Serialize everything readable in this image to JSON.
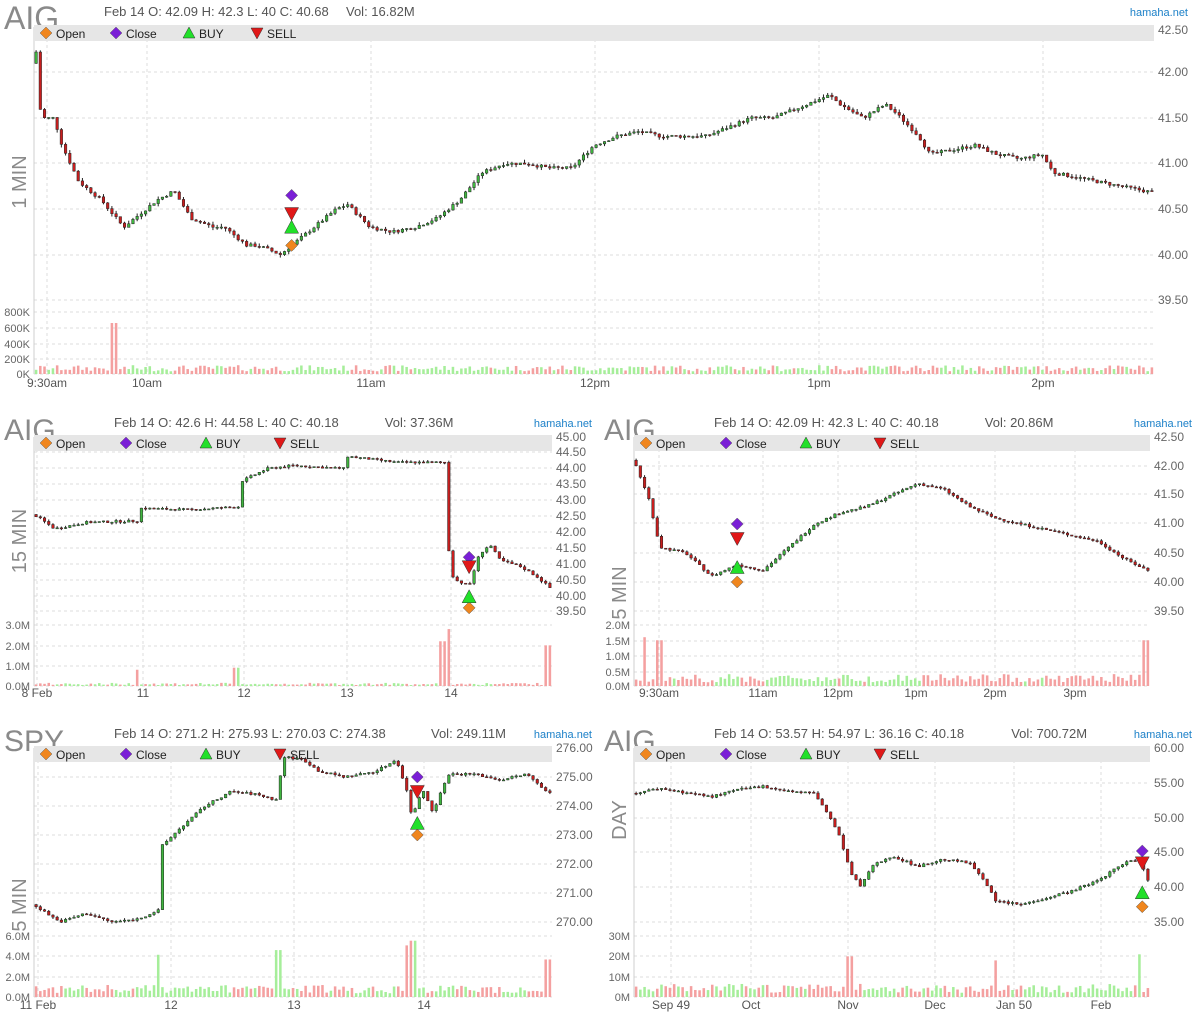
{
  "brand": "hamaha.net",
  "legend": [
    {
      "label": "Open",
      "marker": "diamond",
      "color": "#f0861e"
    },
    {
      "label": "Close",
      "marker": "diamond",
      "color": "#7a1fd6"
    },
    {
      "label": "BUY",
      "marker": "triangle-up",
      "color": "#22e02a"
    },
    {
      "label": "SELL",
      "marker": "triangle-down",
      "color": "#e01818"
    }
  ],
  "colors": {
    "up": "#3fb63f",
    "down": "#c81e1e",
    "vol_up": "#a6ee9a",
    "vol_down": "#f4a0a0",
    "grid": "#dddddd",
    "legend_bar": "#e6e6e6",
    "brand": "#1c80c8"
  },
  "charts": [
    {
      "id": "aig-1min",
      "symbol": "AIG",
      "timeframe": "1 MIN",
      "info": "Feb 14 O: 42.09 H: 42.3 L: 40 C: 40.68",
      "volume_text": "Vol: 16.82M",
      "price_ticks": [
        "42.50",
        "42.00",
        "41.50",
        "41.00",
        "40.50",
        "40.00",
        "39.50"
      ],
      "volume_ticks": [
        "800K",
        "600K",
        "400K",
        "200K",
        "0K"
      ],
      "x_ticks": [
        "9:30am",
        "10am",
        "11am",
        "12pm",
        "1pm",
        "2pm"
      ]
    },
    {
      "id": "aig-15min",
      "symbol": "AIG",
      "timeframe": "15 MIN",
      "info": "Feb 14 O: 42.6 H: 44.58 L: 40 C: 40.18",
      "volume_text": "Vol: 37.36M",
      "price_ticks": [
        "45.00",
        "44.50",
        "44.00",
        "43.50",
        "43.00",
        "42.50",
        "42.00",
        "41.50",
        "41.00",
        "40.50",
        "40.00",
        "39.50"
      ],
      "volume_ticks": [
        "3.0M",
        "2.0M",
        "1.0M",
        "0.0M"
      ],
      "x_ticks": [
        "8 Feb",
        "11",
        "12",
        "13",
        "14"
      ]
    },
    {
      "id": "aig-5min",
      "symbol": "AIG",
      "timeframe": "5 MIN",
      "info": "Feb 14 O: 42.09 H: 42.3 L: 40 C: 40.18",
      "volume_text": "Vol: 20.86M",
      "price_ticks": [
        "42.50",
        "42.00",
        "41.50",
        "41.00",
        "40.50",
        "40.00",
        "39.50"
      ],
      "volume_ticks": [
        "2.0M",
        "1.5M",
        "1.0M",
        "0.5M",
        "0.0M"
      ],
      "x_ticks": [
        "9:30am",
        "11am",
        "12pm",
        "1pm",
        "2pm",
        "3pm"
      ]
    },
    {
      "id": "spy-5min",
      "symbol": "SPY",
      "timeframe": "5 MIN",
      "info": "Feb 14 O: 271.2 H: 275.93 L: 270.03 C: 274.38",
      "volume_text": "Vol: 249.11M",
      "price_ticks": [
        "276.00",
        "275.00",
        "274.00",
        "273.00",
        "272.00",
        "271.00",
        "270.00"
      ],
      "volume_ticks": [
        "6.0M",
        "4.0M",
        "2.0M",
        "0.0M"
      ],
      "x_ticks": [
        "11 Feb",
        "12",
        "13",
        "14"
      ]
    },
    {
      "id": "aig-day",
      "symbol": "AIG",
      "timeframe": "DAY",
      "info": "Feb 14 O: 53.57 H: 54.97 L: 36.16 C: 40.18",
      "volume_text": "Vol: 700.72M",
      "price_ticks": [
        "60.00",
        "55.00",
        "50.00",
        "45.00",
        "40.00",
        "35.00"
      ],
      "volume_ticks": [
        "30M",
        "20M",
        "10M",
        "0M"
      ],
      "x_ticks": [
        "Sep 49",
        "Oct",
        "Nov",
        "Dec",
        "Jan 50",
        "Feb"
      ]
    }
  ],
  "chart_data": [
    {
      "type": "candlestick",
      "symbol": "AIG",
      "timeframe": "1 MIN",
      "ylim": [
        39.5,
        42.5
      ],
      "grid": true,
      "legend_position": "top",
      "price_path": [
        [
          0,
          42.1
        ],
        [
          0.003,
          42.3
        ],
        [
          0.006,
          41.5
        ],
        [
          0.018,
          41.5
        ],
        [
          0.025,
          41.2
        ],
        [
          0.04,
          40.8
        ],
        [
          0.06,
          40.6
        ],
        [
          0.08,
          40.3
        ],
        [
          0.1,
          40.5
        ],
        [
          0.11,
          40.6
        ],
        [
          0.125,
          40.7
        ],
        [
          0.14,
          40.4
        ],
        [
          0.16,
          40.3
        ],
        [
          0.17,
          40.3
        ],
        [
          0.19,
          40.1
        ],
        [
          0.2,
          40.1
        ],
        [
          0.22,
          40.0
        ],
        [
          0.24,
          40.2
        ],
        [
          0.25,
          40.3
        ],
        [
          0.26,
          40.4
        ],
        [
          0.27,
          40.5
        ],
        [
          0.28,
          40.55
        ],
        [
          0.3,
          40.3
        ],
        [
          0.32,
          40.25
        ],
        [
          0.34,
          40.3
        ],
        [
          0.36,
          40.4
        ],
        [
          0.38,
          40.6
        ],
        [
          0.4,
          40.9
        ],
        [
          0.42,
          41.0
        ],
        [
          0.44,
          41.0
        ],
        [
          0.46,
          40.95
        ],
        [
          0.48,
          40.95
        ],
        [
          0.5,
          41.2
        ],
        [
          0.52,
          41.3
        ],
        [
          0.54,
          41.35
        ],
        [
          0.56,
          41.3
        ],
        [
          0.58,
          41.3
        ],
        [
          0.6,
          41.3
        ],
        [
          0.62,
          41.4
        ],
        [
          0.64,
          41.5
        ],
        [
          0.66,
          41.5
        ],
        [
          0.68,
          41.6
        ],
        [
          0.7,
          41.7
        ],
        [
          0.71,
          41.75
        ],
        [
          0.72,
          41.65
        ],
        [
          0.74,
          41.5
        ],
        [
          0.76,
          41.65
        ],
        [
          0.77,
          41.55
        ],
        [
          0.79,
          41.3
        ],
        [
          0.8,
          41.1
        ],
        [
          0.82,
          41.15
        ],
        [
          0.84,
          41.2
        ],
        [
          0.86,
          41.1
        ],
        [
          0.88,
          41.05
        ],
        [
          0.9,
          41.1
        ],
        [
          0.91,
          40.9
        ],
        [
          0.93,
          40.85
        ],
        [
          0.95,
          40.8
        ],
        [
          0.97,
          40.75
        ],
        [
          1.0,
          40.68
        ]
      ],
      "trades": {
        "open": 40.1,
        "close": 40.65,
        "buy": 40.3,
        "sell": 40.45,
        "at": 0.23
      },
      "volume_spikes": [
        [
          0.07,
          600000
        ]
      ],
      "volume_base": 80000,
      "volume_max": 800000
    },
    {
      "type": "candlestick",
      "symbol": "AIG",
      "timeframe": "15 MIN",
      "ylim": [
        39.5,
        45.0
      ],
      "grid": true,
      "legend_position": "top",
      "price_path": [
        [
          0,
          42.55
        ],
        [
          0.04,
          42.1
        ],
        [
          0.1,
          42.3
        ],
        [
          0.2,
          42.35
        ],
        [
          0.2,
          42.75
        ],
        [
          0.3,
          42.7
        ],
        [
          0.4,
          42.8
        ],
        [
          0.4,
          43.6
        ],
        [
          0.45,
          44.0
        ],
        [
          0.5,
          44.1
        ],
        [
          0.6,
          44.0
        ],
        [
          0.6,
          44.4
        ],
        [
          0.7,
          44.2
        ],
        [
          0.8,
          44.2
        ],
        [
          0.8,
          41.5
        ],
        [
          0.81,
          40.5
        ],
        [
          0.84,
          40.3
        ],
        [
          0.86,
          41.3
        ],
        [
          0.88,
          41.6
        ],
        [
          0.9,
          41.1
        ],
        [
          0.94,
          40.9
        ],
        [
          0.97,
          40.6
        ],
        [
          1.0,
          40.18
        ]
      ],
      "trades": {
        "open": 39.6,
        "close": 41.2,
        "buy": 39.95,
        "sell": 40.9,
        "at": 0.84
      },
      "volume_spikes": [
        [
          0.2,
          800000
        ],
        [
          0.39,
          900000
        ],
        [
          0.79,
          2200000
        ],
        [
          0.8,
          2800000
        ],
        [
          0.99,
          2000000
        ]
      ],
      "volume_base": 120000,
      "volume_max": 3000000
    },
    {
      "type": "candlestick",
      "symbol": "AIG",
      "timeframe": "5 MIN",
      "ylim": [
        39.5,
        42.5
      ],
      "grid": true,
      "legend_position": "top",
      "price_path": [
        [
          0,
          42.1
        ],
        [
          0.03,
          41.4
        ],
        [
          0.05,
          40.6
        ],
        [
          0.1,
          40.5
        ],
        [
          0.15,
          40.1
        ],
        [
          0.2,
          40.3
        ],
        [
          0.25,
          40.2
        ],
        [
          0.3,
          40.6
        ],
        [
          0.35,
          41.0
        ],
        [
          0.4,
          41.2
        ],
        [
          0.45,
          41.3
        ],
        [
          0.5,
          41.5
        ],
        [
          0.55,
          41.7
        ],
        [
          0.6,
          41.6
        ],
        [
          0.65,
          41.3
        ],
        [
          0.7,
          41.1
        ],
        [
          0.75,
          41.0
        ],
        [
          0.8,
          40.9
        ],
        [
          0.85,
          40.8
        ],
        [
          0.9,
          40.7
        ],
        [
          0.95,
          40.4
        ],
        [
          1.0,
          40.18
        ]
      ],
      "trades": {
        "open": 40.0,
        "close": 41.0,
        "buy": 40.25,
        "sell": 40.75,
        "at": 0.2
      },
      "volume_spikes": [
        [
          0.02,
          1600000
        ],
        [
          0.05,
          1500000
        ],
        [
          0.99,
          1500000
        ]
      ],
      "volume_base": 300000,
      "volume_max": 2000000
    },
    {
      "type": "candlestick",
      "symbol": "SPY",
      "timeframe": "5 MIN",
      "ylim": [
        270.0,
        276.0
      ],
      "grid": true,
      "legend_position": "top",
      "price_path": [
        [
          0,
          270.6
        ],
        [
          0.05,
          270.0
        ],
        [
          0.1,
          270.3
        ],
        [
          0.15,
          270.0
        ],
        [
          0.2,
          270.1
        ],
        [
          0.24,
          270.4
        ],
        [
          0.24,
          272.5
        ],
        [
          0.28,
          273.2
        ],
        [
          0.33,
          274.0
        ],
        [
          0.38,
          274.5
        ],
        [
          0.43,
          274.4
        ],
        [
          0.47,
          274.2
        ],
        [
          0.48,
          275.7
        ],
        [
          0.52,
          275.6
        ],
        [
          0.55,
          275.2
        ],
        [
          0.6,
          275.0
        ],
        [
          0.66,
          275.2
        ],
        [
          0.7,
          275.6
        ],
        [
          0.72,
          274.5
        ],
        [
          0.73,
          273.6
        ],
        [
          0.75,
          274.6
        ],
        [
          0.77,
          273.8
        ],
        [
          0.8,
          275.1
        ],
        [
          0.85,
          275.1
        ],
        [
          0.9,
          274.9
        ],
        [
          0.95,
          275.1
        ],
        [
          1.0,
          274.38
        ]
      ],
      "trades": {
        "open": 273.0,
        "close": 275.0,
        "buy": 273.4,
        "sell": 274.5,
        "at": 0.74
      },
      "volume_spikes": [
        [
          0.24,
          4500000
        ],
        [
          0.47,
          5000000
        ],
        [
          0.72,
          5500000
        ],
        [
          0.73,
          6000000
        ],
        [
          0.99,
          4000000
        ]
      ],
      "volume_base": 1000000,
      "volume_max": 6500000
    },
    {
      "type": "candlestick",
      "symbol": "AIG",
      "timeframe": "DAY",
      "ylim": [
        35.0,
        60.0
      ],
      "grid": true,
      "legend_position": "top",
      "price_path": [
        [
          0,
          53.5
        ],
        [
          0.05,
          54.2
        ],
        [
          0.1,
          53.6
        ],
        [
          0.15,
          53.0
        ],
        [
          0.2,
          54.0
        ],
        [
          0.25,
          54.5
        ],
        [
          0.3,
          53.8
        ],
        [
          0.35,
          53.5
        ],
        [
          0.38,
          50.0
        ],
        [
          0.4,
          47.0
        ],
        [
          0.42,
          42.0
        ],
        [
          0.44,
          40.0
        ],
        [
          0.46,
          43.0
        ],
        [
          0.5,
          44.5
        ],
        [
          0.55,
          43.0
        ],
        [
          0.6,
          44.0
        ],
        [
          0.65,
          43.5
        ],
        [
          0.68,
          41.0
        ],
        [
          0.7,
          38.0
        ],
        [
          0.75,
          37.5
        ],
        [
          0.8,
          38.5
        ],
        [
          0.85,
          39.5
        ],
        [
          0.9,
          41.0
        ],
        [
          0.95,
          43.5
        ],
        [
          0.98,
          44.0
        ],
        [
          1.0,
          40.18
        ]
      ],
      "trades": {
        "open": 37.2,
        "close": 45.2,
        "buy": 39.2,
        "sell": 43.5,
        "at": 0.985
      },
      "volume_spikes": [
        [
          0.42,
          20000000
        ],
        [
          0.7,
          18000000
        ],
        [
          0.98,
          21000000
        ]
      ],
      "volume_base": 5000000,
      "volume_max": 30000000
    }
  ]
}
